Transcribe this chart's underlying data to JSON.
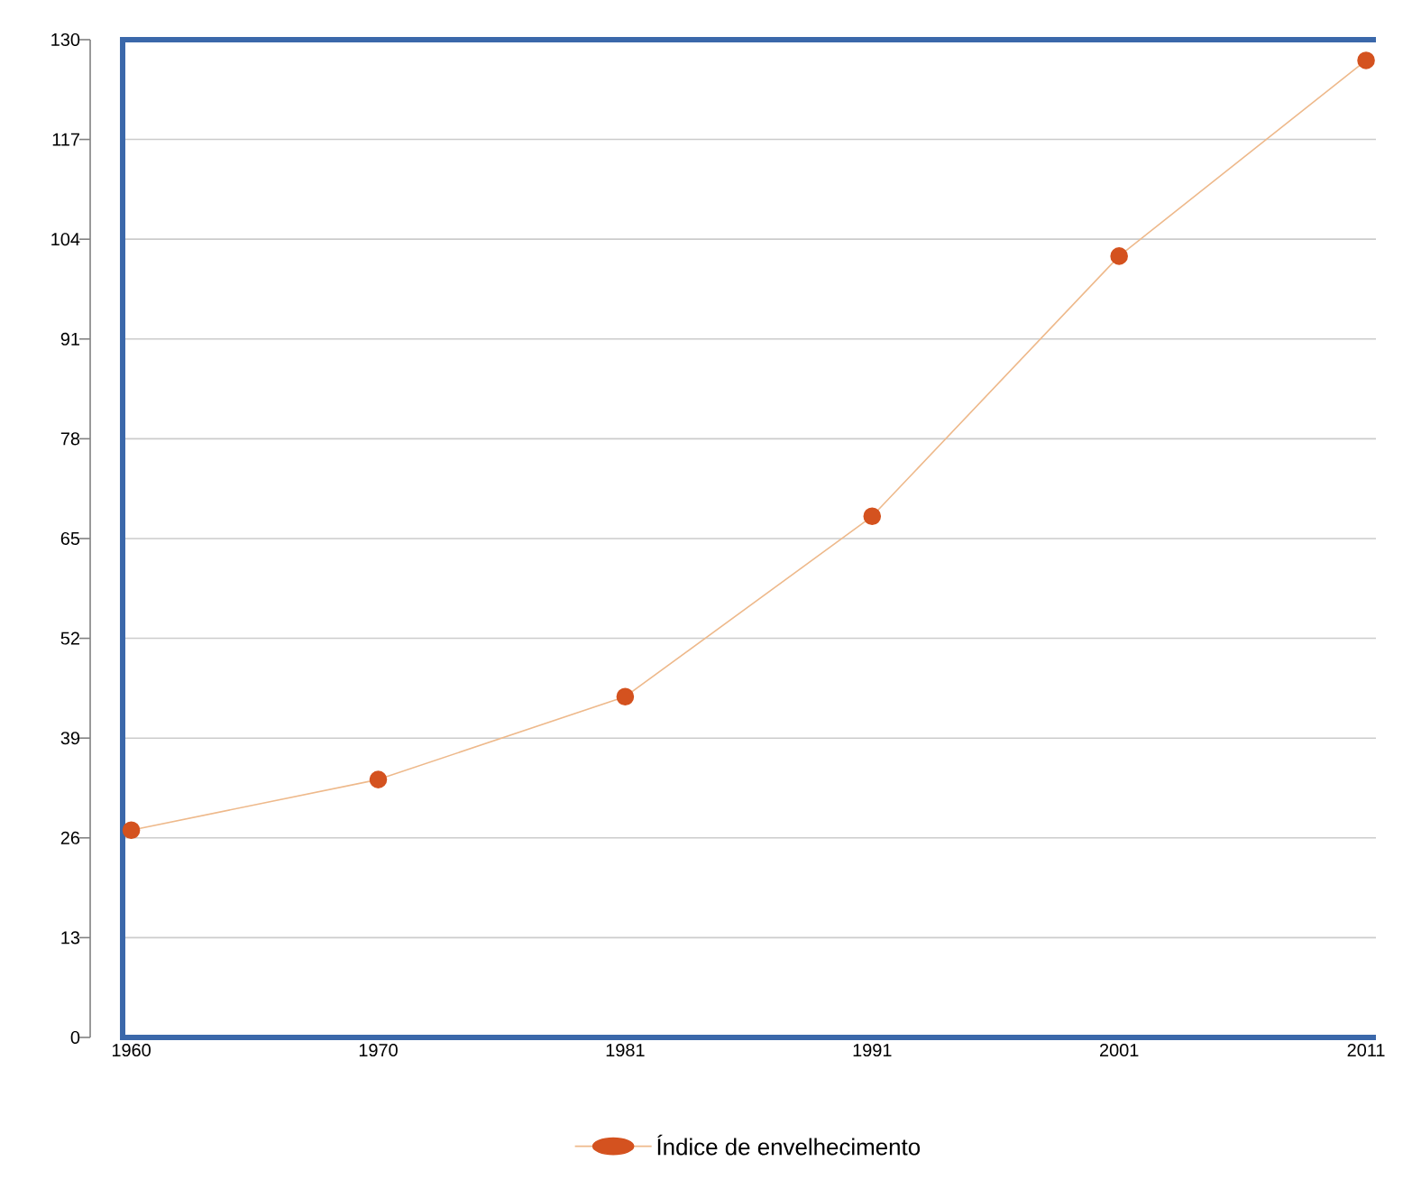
{
  "chart_data": {
    "type": "line",
    "categories": [
      "1960",
      "1970",
      "1981",
      "1991",
      "2001",
      "2011"
    ],
    "series": [
      {
        "name": "Índice de envelhecimento",
        "color": "#d4521f",
        "values": [
          27.0,
          33.6,
          44.4,
          67.9,
          101.8,
          127.3
        ]
      }
    ],
    "ylim": [
      0,
      130
    ],
    "yticks": [
      0,
      13,
      26,
      39,
      52,
      65,
      78,
      91,
      104,
      117,
      130
    ],
    "grid": "y",
    "legend": "bottom",
    "marker": "circle",
    "line_style": "solid"
  }
}
